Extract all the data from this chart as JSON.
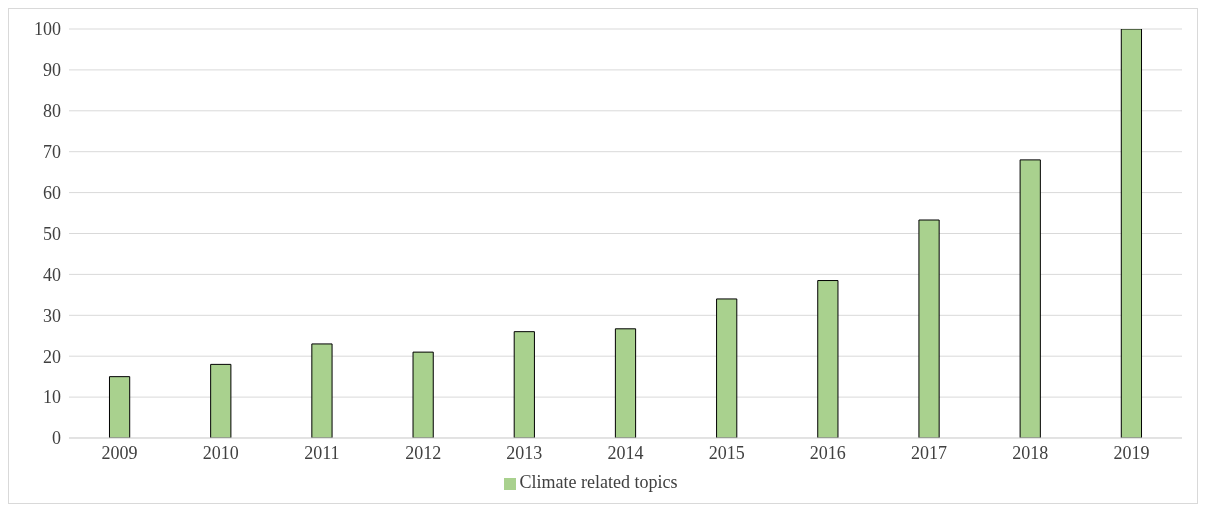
{
  "chart_data": {
    "type": "bar",
    "categories": [
      "2009",
      "2010",
      "2011",
      "2012",
      "2013",
      "2014",
      "2015",
      "2016",
      "2017",
      "2018",
      "2019"
    ],
    "series": [
      {
        "name": "Climate related topics",
        "color": "#a9d18e",
        "values": [
          15,
          18,
          23,
          21,
          26,
          26.7,
          34,
          38.5,
          53.3,
          68,
          100
        ]
      }
    ],
    "ylim": [
      0,
      100
    ],
    "yticks": [
      0,
      10,
      20,
      30,
      40,
      50,
      60,
      70,
      80,
      90,
      100
    ],
    "grid": "y",
    "legend": "bottom"
  }
}
